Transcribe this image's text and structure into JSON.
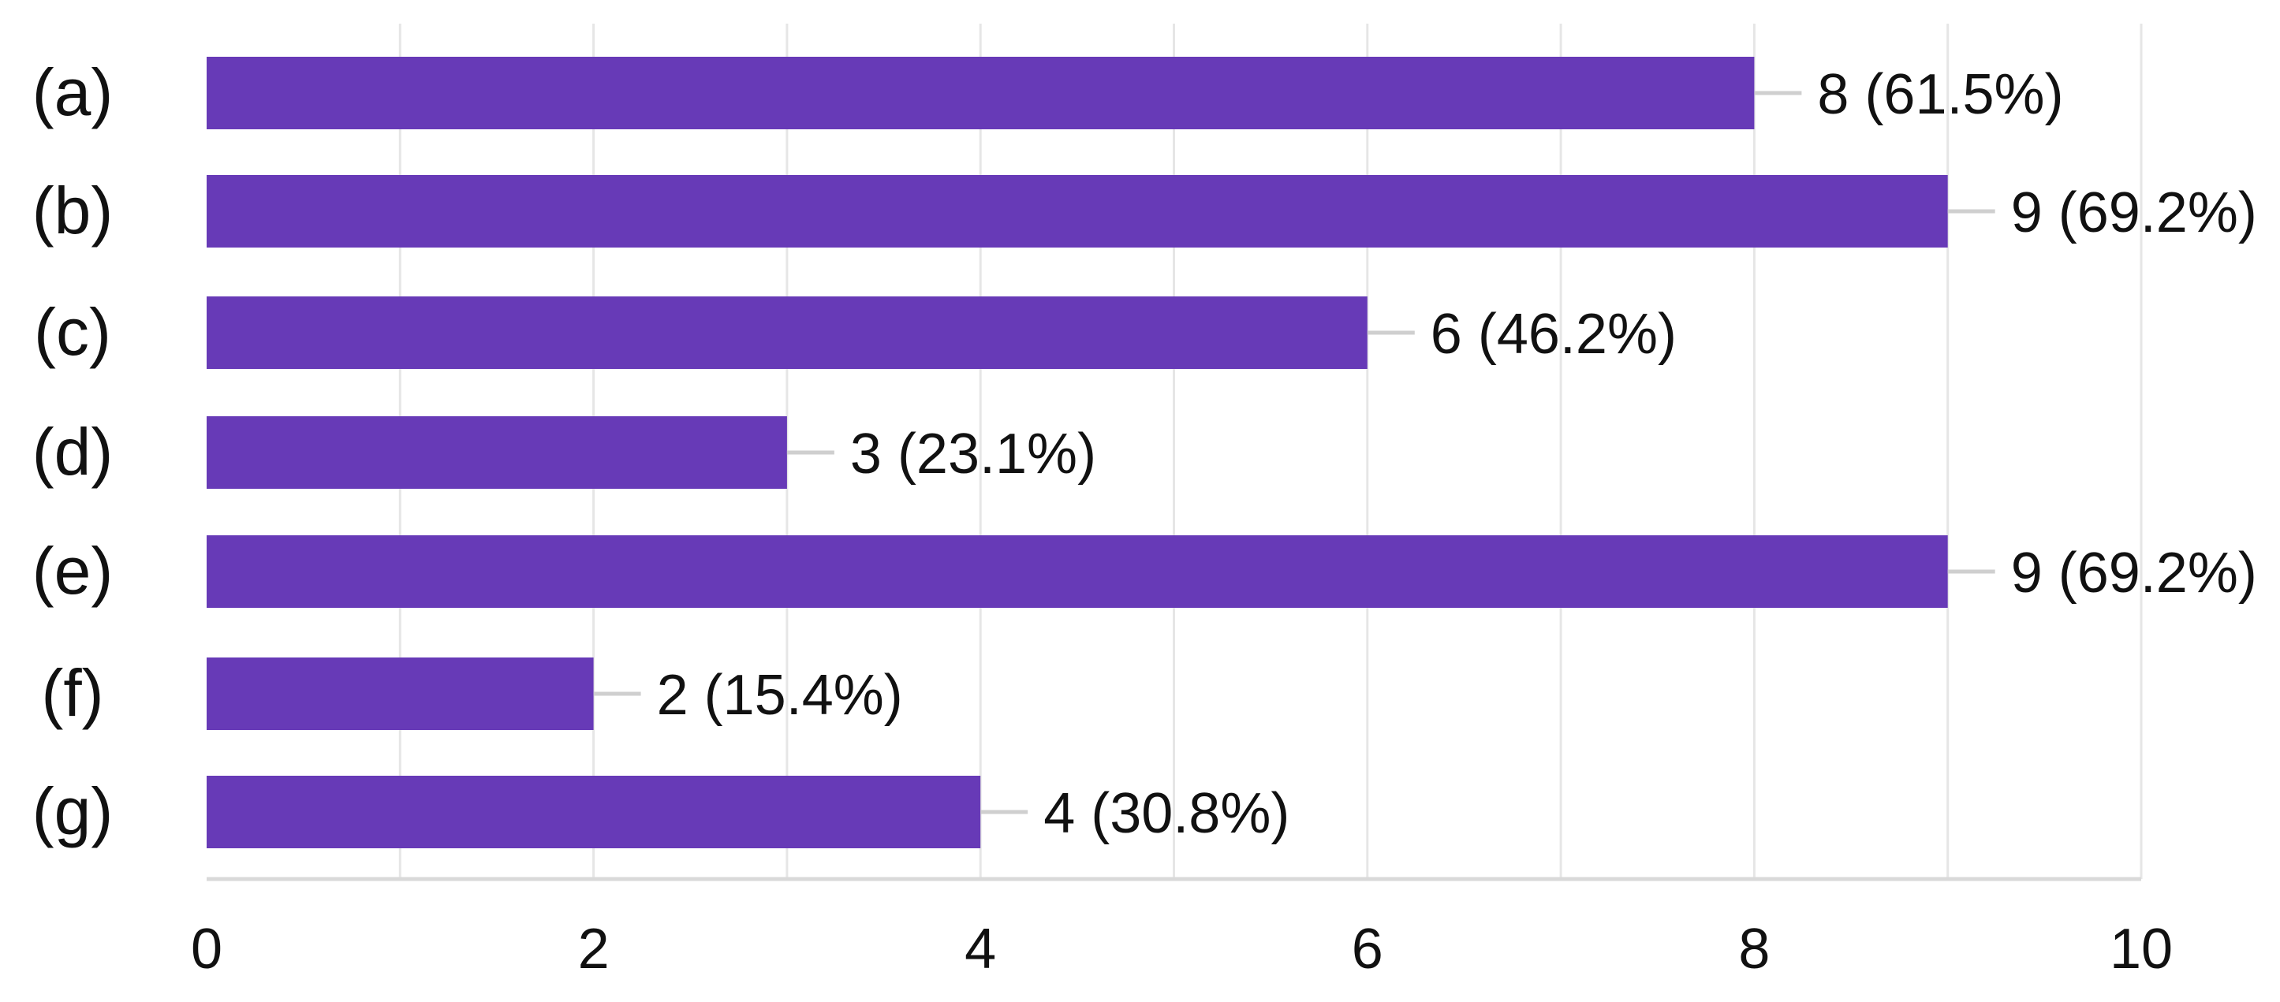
{
  "chart_data": {
    "type": "bar",
    "orientation": "horizontal",
    "categories": [
      "(a)",
      "(b)",
      "(c)",
      "(d)",
      "(e)",
      "(f)",
      "(g)"
    ],
    "values": [
      8,
      9,
      6,
      3,
      9,
      2,
      4
    ],
    "data_labels": [
      "8 (61.5%)",
      "9 (69.2%)",
      "6 (46.2%)",
      "3 (23.1%)",
      "9 (69.2%)",
      "2 (15.4%)",
      "4 (30.8%)"
    ],
    "xlim": [
      0,
      10
    ],
    "x_ticks": [
      0,
      2,
      4,
      6,
      8,
      10
    ],
    "x_tick_labels": [
      "0",
      "2",
      "4",
      "6",
      "8",
      "10"
    ],
    "title": "",
    "xlabel": "",
    "ylabel": "",
    "grid": true,
    "legend": "none",
    "colors": {
      "bar": "#673ab7"
    }
  }
}
